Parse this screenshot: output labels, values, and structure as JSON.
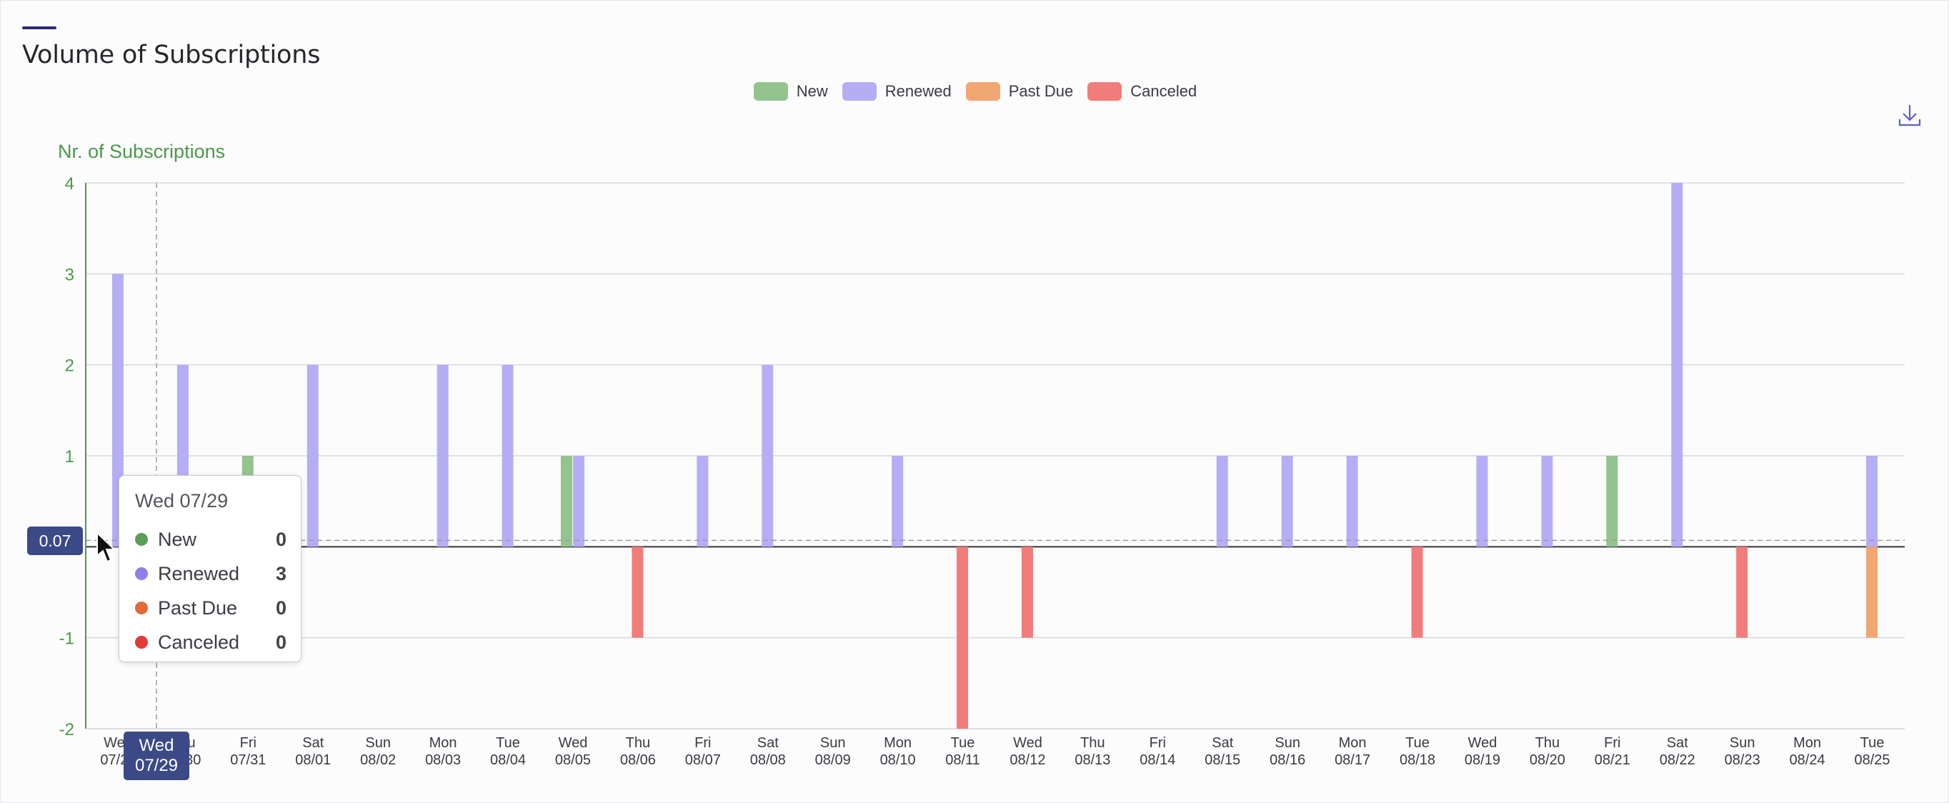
{
  "title": "Volume of Subscriptions",
  "colors": {
    "new": "#93c48e",
    "renewed": "#b5aef5",
    "past_due": "#f0a774",
    "canceled": "#f07d7b",
    "axis_green": "#4a9a4a",
    "pill": "#3b4a86"
  },
  "legend": [
    {
      "label": "New",
      "color": "#93c48e"
    },
    {
      "label": "Renewed",
      "color": "#b5aef5"
    },
    {
      "label": "Past Due",
      "color": "#f0a774"
    },
    {
      "label": "Canceled",
      "color": "#f07d7b"
    }
  ],
  "icons": {
    "download": "download-icon",
    "cursor": "mouse-pointer-icon"
  },
  "tooltip": {
    "date": "Wed 07/29",
    "rows": [
      {
        "label": "New",
        "value": "0",
        "color": "#5a9e5a"
      },
      {
        "label": "Renewed",
        "value": "3",
        "color": "#8f7fe8"
      },
      {
        "label": "Past Due",
        "value": "0",
        "color": "#e06a3a"
      },
      {
        "label": "Canceled",
        "value": "0",
        "color": "#e03a3a"
      }
    ]
  },
  "crosshair": {
    "y_value": "0.07",
    "x_label_line1": "Wed",
    "x_label_line2": "07/29"
  },
  "chart_data": {
    "type": "bar",
    "ylabel": "Nr. of Subscriptions",
    "ylim": [
      -2,
      4
    ],
    "yticks": [
      "4",
      "3",
      "2",
      "1",
      "",
      "-1",
      "-2"
    ],
    "categories": [
      {
        "day": "Wed",
        "date": "07/29"
      },
      {
        "day": "Thu",
        "date": "07/30"
      },
      {
        "day": "Fri",
        "date": "07/31"
      },
      {
        "day": "Sat",
        "date": "08/01"
      },
      {
        "day": "Sun",
        "date": "08/02"
      },
      {
        "day": "Mon",
        "date": "08/03"
      },
      {
        "day": "Tue",
        "date": "08/04"
      },
      {
        "day": "Wed",
        "date": "08/05"
      },
      {
        "day": "Thu",
        "date": "08/06"
      },
      {
        "day": "Fri",
        "date": "08/07"
      },
      {
        "day": "Sat",
        "date": "08/08"
      },
      {
        "day": "Sun",
        "date": "08/09"
      },
      {
        "day": "Mon",
        "date": "08/10"
      },
      {
        "day": "Tue",
        "date": "08/11"
      },
      {
        "day": "Wed",
        "date": "08/12"
      },
      {
        "day": "Thu",
        "date": "08/13"
      },
      {
        "day": "Fri",
        "date": "08/14"
      },
      {
        "day": "Sat",
        "date": "08/15"
      },
      {
        "day": "Sun",
        "date": "08/16"
      },
      {
        "day": "Mon",
        "date": "08/17"
      },
      {
        "day": "Tue",
        "date": "08/18"
      },
      {
        "day": "Wed",
        "date": "08/19"
      },
      {
        "day": "Thu",
        "date": "08/20"
      },
      {
        "day": "Fri",
        "date": "08/21"
      },
      {
        "day": "Sat",
        "date": "08/22"
      },
      {
        "day": "Sun",
        "date": "08/23"
      },
      {
        "day": "Mon",
        "date": "08/24"
      },
      {
        "day": "Tue",
        "date": "08/25"
      }
    ],
    "series": [
      {
        "name": "New",
        "values": [
          0,
          0,
          1,
          0,
          0,
          0,
          0,
          1,
          0,
          0,
          0,
          0,
          0,
          0,
          0,
          0,
          0,
          0,
          0,
          0,
          0,
          0,
          0,
          1,
          0,
          0,
          0,
          0
        ]
      },
      {
        "name": "Renewed",
        "values": [
          3,
          2,
          0,
          2,
          0,
          2,
          2,
          1,
          0,
          1,
          2,
          0,
          1,
          0,
          0,
          0,
          0,
          1,
          1,
          1,
          0,
          1,
          1,
          0,
          4,
          0,
          0,
          1
        ]
      },
      {
        "name": "Past Due",
        "values": [
          0,
          0,
          0,
          0,
          0,
          0,
          0,
          0,
          0,
          0,
          0,
          0,
          0,
          0,
          0,
          0,
          0,
          0,
          0,
          0,
          0,
          0,
          0,
          0,
          0,
          0,
          0,
          -1
        ]
      },
      {
        "name": "Canceled",
        "values": [
          0,
          0,
          0,
          0,
          0,
          0,
          0,
          0,
          -1,
          0,
          0,
          0,
          0,
          -2,
          -1,
          0,
          0,
          0,
          0,
          0,
          -1,
          0,
          0,
          0,
          0,
          -1,
          0,
          0
        ]
      }
    ],
    "grid": true,
    "legend_position": "top-center"
  }
}
